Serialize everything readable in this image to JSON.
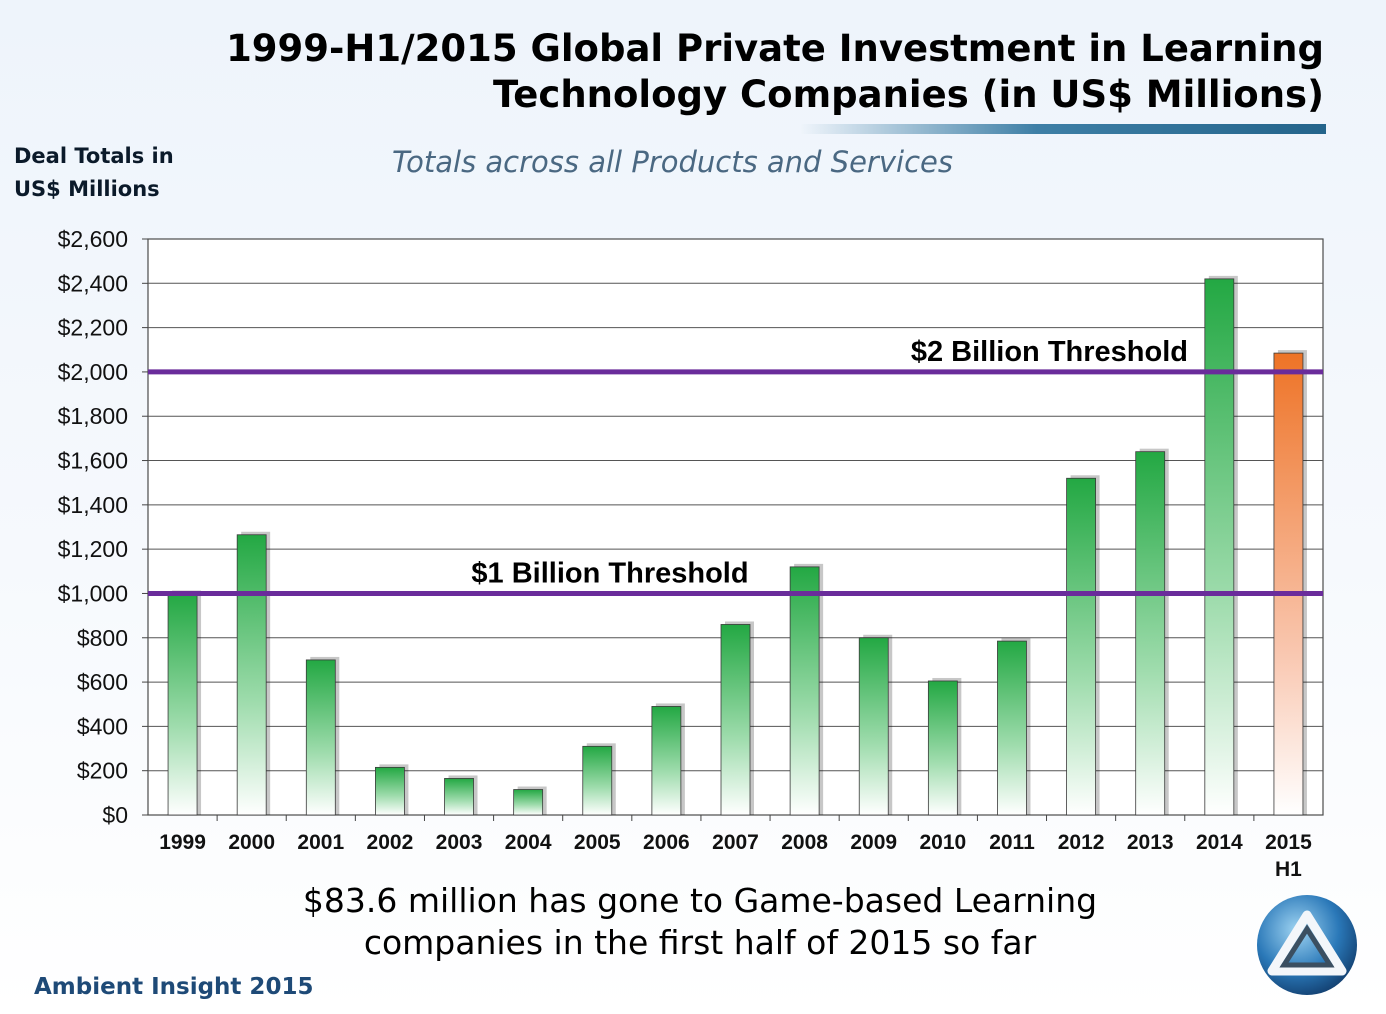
{
  "title_line1": "1999-H1/2015 Global Private Investment in Learning",
  "title_line2": "Technology Companies (in US$ Millions)",
  "subtitle": "Totals across all Products and Services",
  "y_axis_title_line1": "Deal Totals in",
  "y_axis_title_line2": "US$ Millions",
  "caption_line1": "$83.6 million has gone to Game-based Learning",
  "caption_line2": "companies in the first half of 2015 so far",
  "footer": "Ambient Insight 2015",
  "colors": {
    "bar_green": "#2db34a",
    "bar_orange": "#ef7b2a",
    "threshold_line": "#6a2c9b",
    "title_rule": "#2a6a90"
  },
  "chart_data": {
    "type": "bar",
    "categories": [
      "1999",
      "2000",
      "2001",
      "2002",
      "2003",
      "2004",
      "2005",
      "2006",
      "2007",
      "2008",
      "2009",
      "2010",
      "2011",
      "2012",
      "2013",
      "2014",
      "2015 H1"
    ],
    "values": [
      1000,
      1265,
      700,
      215,
      165,
      115,
      310,
      490,
      860,
      1120,
      800,
      605,
      785,
      1520,
      1640,
      2420,
      2085
    ],
    "highlight_category": "2015 H1",
    "ylim": [
      0,
      2600
    ],
    "yticks": [
      0,
      200,
      400,
      600,
      800,
      1000,
      1200,
      1400,
      1600,
      1800,
      2000,
      2200,
      2400,
      2600
    ],
    "ytick_labels": [
      "$0",
      "$200",
      "$400",
      "$600",
      "$800",
      "$1,000",
      "$1,200",
      "$1,400",
      "$1,600",
      "$1,800",
      "$2,000",
      "$2,200",
      "$2,400",
      "$2,600"
    ],
    "grid": true,
    "thresholds": [
      {
        "value": 1000,
        "label": "$1 Billion Threshold"
      },
      {
        "value": 2000,
        "label": "$2 Billion Threshold"
      }
    ]
  }
}
